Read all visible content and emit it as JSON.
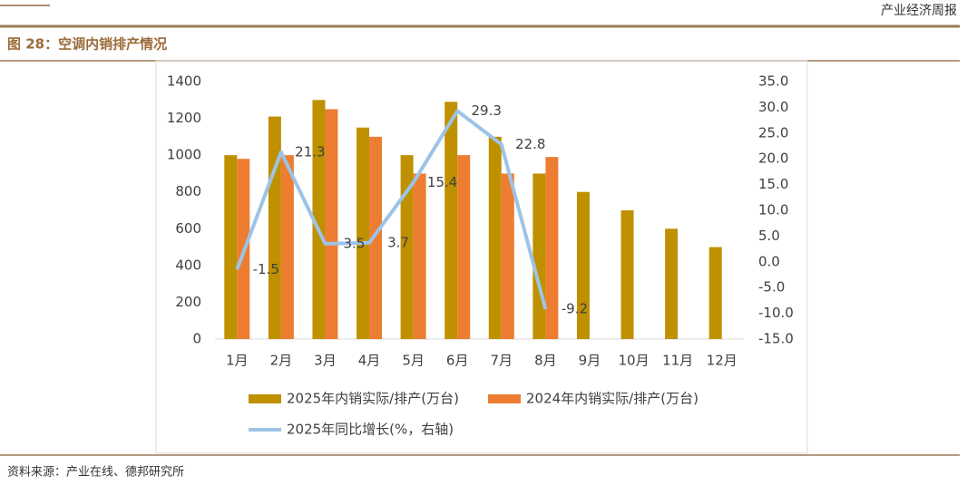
{
  "header": {
    "report": "产业经济周报"
  },
  "chart_data": {
    "type": "bar",
    "title": "图 28：空调内销排产情况",
    "source": "资料来源：产业在线、德邦研究所",
    "categories": [
      "1月",
      "2月",
      "3月",
      "4月",
      "5月",
      "6月",
      "7月",
      "8月",
      "9月",
      "10月",
      "11月",
      "12月"
    ],
    "series": [
      {
        "name": "2025年内销实际/排产(万台)",
        "color": "#bf9000",
        "type": "bar",
        "values": [
          1000,
          1210,
          1300,
          1150,
          1000,
          1290,
          1100,
          900,
          800,
          700,
          600,
          500
        ]
      },
      {
        "name": "2024年内销实际/排产(万台)",
        "color": "#ed7d31",
        "type": "bar",
        "values": [
          980,
          1000,
          1250,
          1100,
          900,
          1000,
          900,
          990,
          null,
          null,
          null,
          null
        ]
      },
      {
        "name": "2025年同比增长(%，右轴)",
        "color": "#9dc3e6",
        "type": "line",
        "axis": "y2",
        "values": [
          -1.5,
          21.3,
          3.5,
          3.7,
          15.4,
          29.3,
          22.8,
          -9.2,
          null,
          null,
          null,
          null
        ]
      }
    ],
    "ylim": [
      0,
      1400
    ],
    "yticks": [
      0,
      200,
      400,
      600,
      800,
      1000,
      1200,
      1400
    ],
    "y2lim": [
      -15,
      35
    ],
    "y2ticks": [
      {
        "value": 35,
        "label": "35.0"
      },
      {
        "value": 30,
        "label": "30.0"
      },
      {
        "value": 25,
        "label": "25.0"
      },
      {
        "value": 20,
        "label": "20.0"
      },
      {
        "value": 15,
        "label": "15.0"
      },
      {
        "value": 10,
        "label": "10.0"
      },
      {
        "value": 5,
        "label": "5.0"
      },
      {
        "value": 0,
        "label": "0.0"
      },
      {
        "value": -5,
        "label": "-5.0"
      },
      {
        "value": -10,
        "label": "-10.0"
      },
      {
        "value": -15,
        "label": "-15.0"
      }
    ],
    "grid": false
  }
}
